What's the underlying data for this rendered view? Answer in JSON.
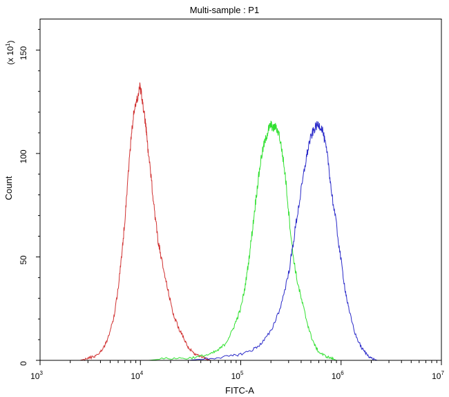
{
  "chart_data": {
    "type": "line",
    "title": "Multi-sample : P1",
    "xlabel": "FITC-A",
    "ylabel": "Count",
    "y_multiplier": {
      "base": "(x 10",
      "exp": "1",
      "close": ")"
    },
    "x_scale": "log",
    "xlim": [
      1000,
      10000000
    ],
    "ylim": [
      0,
      165
    ],
    "x_ticks": [
      {
        "value": 1000,
        "base": "10",
        "exp": "3"
      },
      {
        "value": 10000,
        "base": "10",
        "exp": "4"
      },
      {
        "value": 100000,
        "base": "10",
        "exp": "5"
      },
      {
        "value": 1000000,
        "base": "10",
        "exp": "6"
      },
      {
        "value": 10000000,
        "base": "10",
        "exp": "7"
      }
    ],
    "y_ticks": [
      {
        "value": 0,
        "label": "0"
      },
      {
        "value": 50,
        "label": "50"
      },
      {
        "value": 100,
        "label": "100"
      },
      {
        "value": 150,
        "label": "150"
      }
    ],
    "grid": false,
    "legend": "none",
    "series": [
      {
        "color": "#d03030",
        "x": [
          2500,
          3000,
          3500,
          4000,
          4500,
          5000,
          5500,
          6000,
          6500,
          7000,
          7500,
          8000,
          8500,
          9000,
          9500,
          9900,
          10500,
          11000,
          11500,
          12000,
          13000,
          14000,
          15000,
          16000,
          18000,
          20000,
          22000,
          25000,
          28000,
          30000,
          35000,
          40000,
          45000,
          50000
        ],
        "y": [
          0,
          1,
          2,
          4,
          8,
          14,
          22,
          35,
          50,
          68,
          88,
          105,
          118,
          124,
          128,
          133,
          125,
          118,
          110,
          100,
          85,
          70,
          58,
          50,
          38,
          28,
          20,
          14,
          9,
          6,
          3,
          2,
          1,
          0
        ]
      },
      {
        "color": "#30e030",
        "x": [
          12000,
          20000,
          30000,
          40000,
          50000,
          60000,
          70000,
          80000,
          90000,
          100000,
          110000,
          120000,
          130000,
          140000,
          150000,
          160000,
          170000,
          180000,
          190000,
          200000,
          210000,
          220000,
          240000,
          260000,
          280000,
          300000,
          330000,
          360000,
          400000,
          450000,
          500000,
          550000,
          600000,
          700000,
          800000,
          900000
        ],
        "y": [
          0,
          1,
          1,
          2,
          3,
          5,
          8,
          13,
          19,
          25,
          35,
          48,
          62,
          76,
          88,
          98,
          104,
          108,
          112,
          114,
          112,
          113,
          110,
          100,
          88,
          72,
          52,
          40,
          30,
          20,
          12,
          7,
          4,
          2,
          1,
          0
        ]
      },
      {
        "color": "#2828c8",
        "x": [
          15000,
          30000,
          50000,
          80000,
          100000,
          130000,
          160000,
          200000,
          250000,
          300000,
          330000,
          360000,
          400000,
          440000,
          480000,
          520000,
          560000,
          600000,
          650000,
          700000,
          750000,
          800000,
          900000,
          1000000,
          1100000,
          1200000,
          1400000,
          1600000,
          1800000,
          2000000,
          2300000
        ],
        "y": [
          0,
          0,
          1,
          2,
          3,
          5,
          8,
          14,
          26,
          42,
          55,
          68,
          82,
          95,
          105,
          110,
          113,
          114,
          112,
          104,
          95,
          82,
          65,
          48,
          34,
          24,
          12,
          6,
          3,
          1,
          0
        ]
      }
    ]
  }
}
